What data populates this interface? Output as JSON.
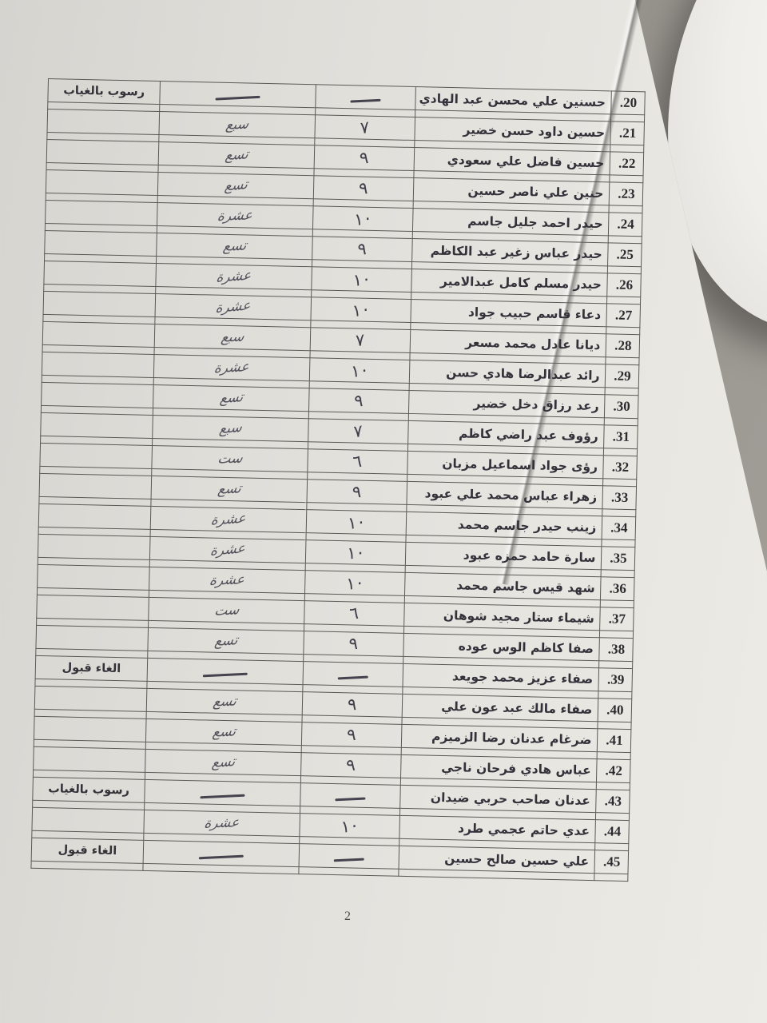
{
  "page_number": "2",
  "colors": {
    "paper": "#e6e4df",
    "backdrop_gray": "#8f8c86",
    "ink_print": "#34313a",
    "ink_handwriting": "#413f4b"
  },
  "table": {
    "rows": [
      {
        "no": "20.",
        "name": "حسنين علي محسن عبد الهادي",
        "grade_numeral": "—",
        "grade_word": "—",
        "note": "رسوب بالغياب"
      },
      {
        "no": "21.",
        "name": "حسين داود حسن خضير",
        "grade_numeral": "٧",
        "grade_word": "سبع",
        "note": ""
      },
      {
        "no": "22.",
        "name": "حسين فاضل علي سعودي",
        "grade_numeral": "٩",
        "grade_word": "تسع",
        "note": ""
      },
      {
        "no": "23.",
        "name": "حنين علي ناصر حسين",
        "grade_numeral": "٩",
        "grade_word": "تسع",
        "note": ""
      },
      {
        "no": "24.",
        "name": "حيدر احمد جليل جاسم",
        "grade_numeral": "١٠",
        "grade_word": "عشرة",
        "note": ""
      },
      {
        "no": "25.",
        "name": "حيدر عباس زغير عبد الكاظم",
        "grade_numeral": "٩",
        "grade_word": "تسع",
        "note": ""
      },
      {
        "no": "26.",
        "name": "حيدر مسلم كامل عبدالامير",
        "grade_numeral": "١٠",
        "grade_word": "عشرة",
        "note": ""
      },
      {
        "no": "27.",
        "name": "دعاء قاسم حبيب جواد",
        "grade_numeral": "١٠",
        "grade_word": "عشرة",
        "note": ""
      },
      {
        "no": "28.",
        "name": "ديانا عادل محمد مسعر",
        "grade_numeral": "٧",
        "grade_word": "سبع",
        "note": ""
      },
      {
        "no": "29.",
        "name": "رائد عبدالرضا هادي حسن",
        "grade_numeral": "١٠",
        "grade_word": "عشرة",
        "note": ""
      },
      {
        "no": "30.",
        "name": "رعد رزاق دخل خضير",
        "grade_numeral": "٩",
        "grade_word": "تسع",
        "note": ""
      },
      {
        "no": "31.",
        "name": "رؤوف عبد راضي كاظم",
        "grade_numeral": "٧",
        "grade_word": "سبع",
        "note": ""
      },
      {
        "no": "32.",
        "name": "رؤى جواد اسماعيل مزبان",
        "grade_numeral": "٦",
        "grade_word": "ست",
        "note": ""
      },
      {
        "no": "33.",
        "name": "زهراء عباس محمد علي عبود",
        "grade_numeral": "٩",
        "grade_word": "تسع",
        "note": ""
      },
      {
        "no": "34.",
        "name": "زينب حيدر جاسم محمد",
        "grade_numeral": "١٠",
        "grade_word": "عشرة",
        "note": ""
      },
      {
        "no": "35.",
        "name": "سارة حامد حمزه عبود",
        "grade_numeral": "١٠",
        "grade_word": "عشرة",
        "note": ""
      },
      {
        "no": "36.",
        "name": "شهد قيس جاسم محمد",
        "grade_numeral": "١٠",
        "grade_word": "عشرة",
        "note": ""
      },
      {
        "no": "37.",
        "name": "شيماء ستار مجيد شوهان",
        "grade_numeral": "٦",
        "grade_word": "ست",
        "note": ""
      },
      {
        "no": "38.",
        "name": "صفا كاظم الوس عوده",
        "grade_numeral": "٩",
        "grade_word": "تسع",
        "note": ""
      },
      {
        "no": "39.",
        "name": "صفاء عزيز محمد جويعد",
        "grade_numeral": "—",
        "grade_word": "—",
        "note": "الغاء قبول"
      },
      {
        "no": "40.",
        "name": "صفاء مالك عبد عون علي",
        "grade_numeral": "٩",
        "grade_word": "تسع",
        "note": ""
      },
      {
        "no": "41.",
        "name": "ضرغام عدنان رضا الزميزم",
        "grade_numeral": "٩",
        "grade_word": "تسع",
        "note": ""
      },
      {
        "no": "42.",
        "name": "عباس هادي فرحان ناجي",
        "grade_numeral": "٩",
        "grade_word": "تسع",
        "note": ""
      },
      {
        "no": "43.",
        "name": "عدنان صاحب حربي ضيدان",
        "grade_numeral": "—",
        "grade_word": "—",
        "note": "رسوب بالغياب"
      },
      {
        "no": "44.",
        "name": "عدي حاتم عجمي طرد",
        "grade_numeral": "١٠",
        "grade_word": "عشرة",
        "note": ""
      },
      {
        "no": "45.",
        "name": "علي حسين صالح حسين",
        "grade_numeral": "—",
        "grade_word": "—",
        "note": "الغاء قبول"
      }
    ]
  }
}
